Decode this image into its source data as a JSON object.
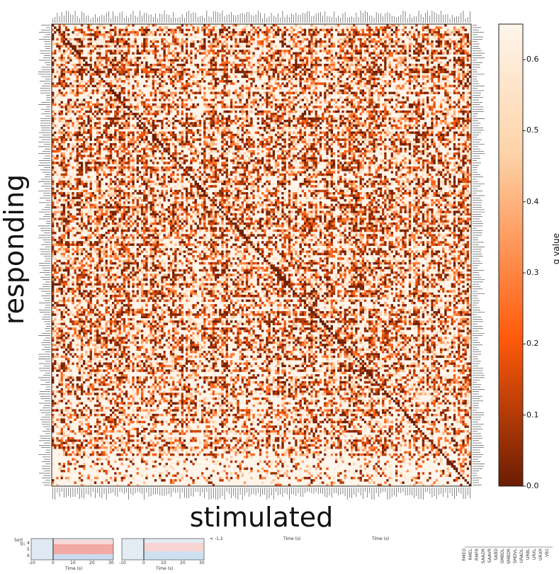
{
  "chart_data": {
    "type": "heatmap",
    "xlabel": "stimulated",
    "ylabel": "responding",
    "colorbar": {
      "label": "q value",
      "range": [
        0.0,
        0.65
      ],
      "ticks": [
        0.0,
        0.1,
        0.2,
        0.3,
        0.4,
        0.5,
        0.6
      ],
      "tick_labels": [
        "0.0",
        "0.1",
        "0.2",
        "0.3",
        "0.4",
        "0.5",
        "0.6"
      ],
      "colormap": "Oranges_r",
      "colors": [
        "#6b1d04",
        "#ff5a0a",
        "#fdd3a8",
        "#fff5eb"
      ]
    },
    "n_stimulated": 188,
    "n_responding": 198,
    "diagonal_value": 0.0,
    "grid": false
  },
  "bottom_strips": {
    "panels": [
      {
        "ylabel_top": "Sort",
        "ylabel_sub": "Tri",
        "yticks": [
          "4",
          "5",
          "6"
        ],
        "xticks": [
          "-10",
          "0",
          "10",
          "20",
          "30"
        ],
        "xlabel": "Time (s)"
      },
      {
        "xticks": [
          "-10",
          "0",
          "10",
          "20",
          "30"
        ],
        "xlabel": "Time (s)"
      }
    ],
    "cut_label_left": "< -1.2",
    "cut_xlabel_a": "Time (s)",
    "cut_xlabel_b": "Time (s)",
    "legend_labels": [
      "RMED",
      "RMEL",
      "RMFR",
      "SAADR",
      "SAAVR",
      "SABD",
      "SMBDL",
      "SMBDR",
      "SMDVL",
      "URADL",
      "URBL",
      "URXL",
      "URXR",
      "VB1"
    ]
  }
}
